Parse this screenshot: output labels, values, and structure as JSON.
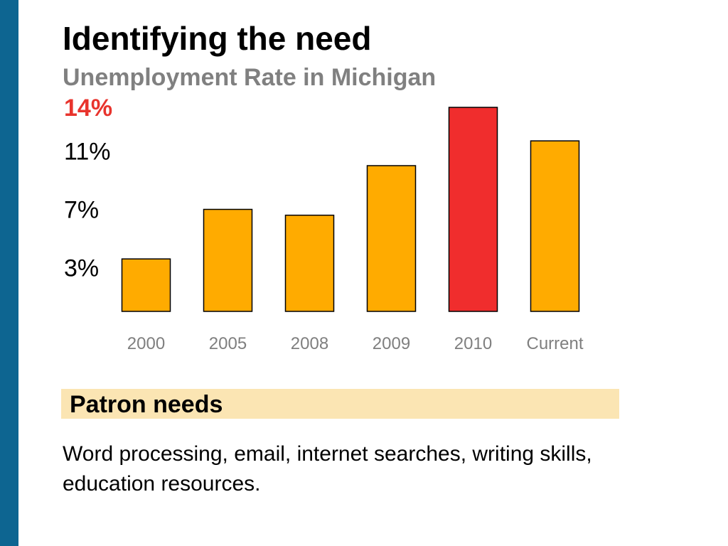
{
  "slide": {
    "title": "Identifying the need",
    "subtitle": "Unemployment Rate in Michigan",
    "section_title": "Patron needs",
    "body": "Word processing, email, internet searches, writing skills, education resources."
  },
  "colors": {
    "side_bar": "#0d6591",
    "bar": "#ffab00",
    "highlight_bar": "#f02d2d",
    "highlight_text": "#e8342d",
    "tick_label": "#7f7f7f",
    "section_band": "#fbe5b3"
  },
  "chart_data": {
    "type": "bar",
    "title": "Unemployment Rate in Michigan",
    "xlabel": "",
    "ylabel": "",
    "grid": false,
    "legend": "none",
    "categories": [
      "2000",
      "2005",
      "2008",
      "2009",
      "2010",
      "Current"
    ],
    "values": [
      3.6,
      7.0,
      6.6,
      10.0,
      14.0,
      11.7
    ],
    "highlight_category": "2010",
    "y_ticks": [
      {
        "label": "3%",
        "value": 3
      },
      {
        "label": "7%",
        "value": 7
      },
      {
        "label": "11%",
        "value": 11
      },
      {
        "label": "14%",
        "value": 14,
        "highlight": true
      }
    ],
    "ylim": [
      0,
      14.5
    ]
  }
}
